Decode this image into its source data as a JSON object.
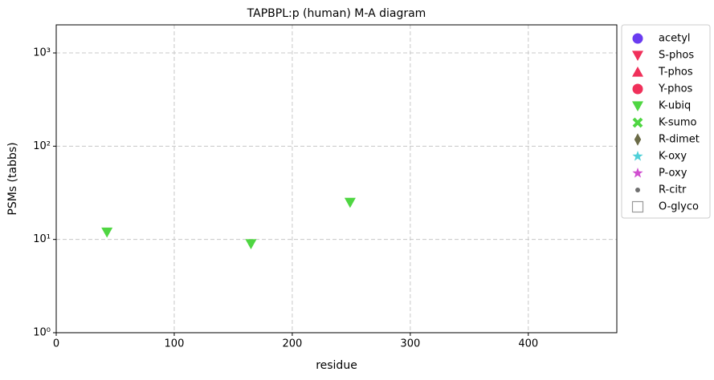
{
  "chart_data": {
    "type": "scatter",
    "title": "TAPBPL:p (human) M-A diagram",
    "x_label": "residue",
    "y_label": "PSMs (tabbs)",
    "xlim": [
      0,
      475
    ],
    "xticks": [
      0,
      100,
      200,
      300,
      400
    ],
    "ylim": [
      1,
      2000
    ],
    "y_scale": "log",
    "yticks": [
      {
        "value": 1,
        "label": "10⁰"
      },
      {
        "value": 10,
        "label": "10¹"
      },
      {
        "value": 100,
        "label": "10²"
      },
      {
        "value": 1000,
        "label": "10³"
      }
    ],
    "grid": true,
    "legend": "outside-right",
    "series": [
      {
        "name": "acetyl",
        "color": "#6a3cf0",
        "marker": "circle",
        "x": [],
        "values": []
      },
      {
        "name": "S-phos",
        "color": "#f0305a",
        "marker": "triangle-down",
        "x": [],
        "values": []
      },
      {
        "name": "T-phos",
        "color": "#f0305a",
        "marker": "triangle-up",
        "x": [],
        "values": []
      },
      {
        "name": "Y-phos",
        "color": "#f0305a",
        "marker": "circle",
        "x": [],
        "values": []
      },
      {
        "name": "K-ubiq",
        "color": "#4fd642",
        "marker": "triangle-down",
        "x": [
          43,
          165,
          249
        ],
        "values": [
          12,
          9,
          25
        ]
      },
      {
        "name": "K-sumo",
        "color": "#4fd642",
        "marker": "x",
        "x": [],
        "values": []
      },
      {
        "name": "R-dimet",
        "color": "#6b6b47",
        "marker": "diamond",
        "x": [],
        "values": []
      },
      {
        "name": "K-oxy",
        "color": "#4fd0d8",
        "marker": "star",
        "x": [],
        "values": []
      },
      {
        "name": "P-oxy",
        "color": "#d04fd0",
        "marker": "star",
        "x": [],
        "values": []
      },
      {
        "name": "R-citr",
        "color": "#707070",
        "marker": "dot",
        "x": [],
        "values": []
      },
      {
        "name": "O-glyco",
        "color": "#999999",
        "marker": "square-open",
        "x": [],
        "values": []
      }
    ]
  }
}
